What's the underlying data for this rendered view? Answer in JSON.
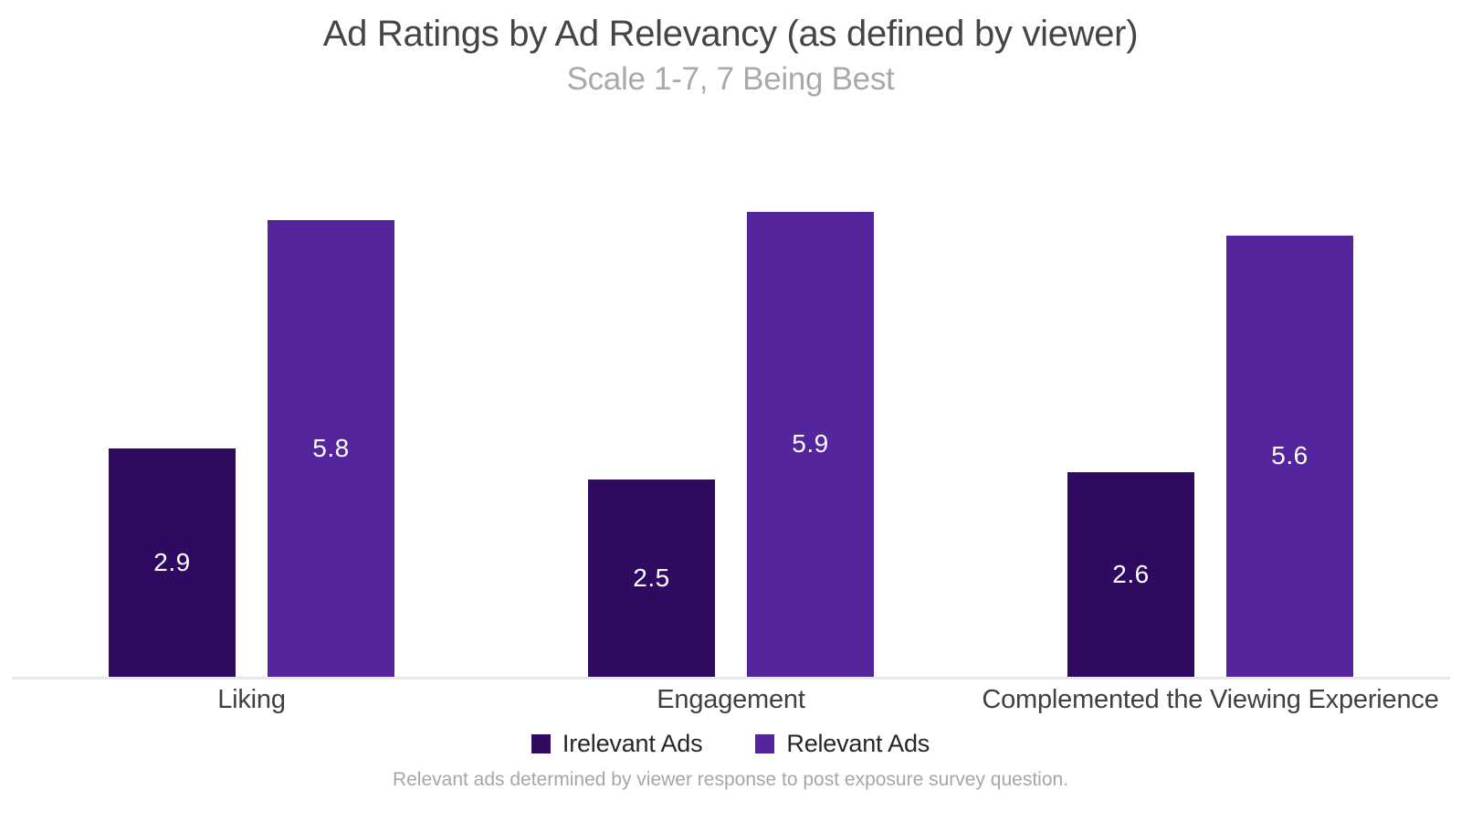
{
  "chart_data": {
    "type": "bar",
    "title": "Ad Ratings by Ad Relevancy (as defined by viewer)",
    "subtitle": "Scale 1-7, 7 Being Best",
    "categories": [
      "Liking",
      "Engagement",
      "Complemented the Viewing Experience"
    ],
    "series": [
      {
        "name": "Irelevant Ads",
        "values": [
          2.9,
          2.5,
          2.6
        ],
        "color": "#2e0a60"
      },
      {
        "name": "Relevant Ads",
        "values": [
          5.8,
          5.9,
          5.6
        ],
        "color": "#54259c"
      }
    ],
    "ylim": [
      0,
      7
    ],
    "grid": false,
    "y_axis_visible": false,
    "x_axis_line_color": "#e9e9e9",
    "data_labels": "inside-center-white",
    "legend_position": "bottom",
    "footnote": "Relevant ads determined by viewer response to post exposure survey question."
  },
  "colors": {
    "background": "#ffffff",
    "title_text": "#454545",
    "subtitle_text": "#a9a9a9",
    "category_text": "#404040",
    "legend_text": "#262626",
    "footnote_text": "#a6a6a6",
    "value_label_text": "#ffffff"
  }
}
